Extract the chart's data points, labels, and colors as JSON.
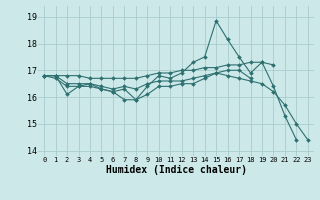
{
  "background_color": "#cce8e8",
  "grid_color": "#aacccc",
  "line_color": "#2e7070",
  "xlabel": "Humidex (Indice chaleur)",
  "ylim": [
    13.8,
    19.4
  ],
  "xlim": [
    -0.5,
    23.5
  ],
  "yticks": [
    14,
    15,
    16,
    17,
    18,
    19
  ],
  "xticks": [
    0,
    1,
    2,
    3,
    4,
    5,
    6,
    7,
    8,
    9,
    10,
    11,
    12,
    13,
    14,
    15,
    16,
    17,
    18,
    19,
    20,
    21,
    22,
    23
  ],
  "series": [
    [
      16.8,
      16.8,
      16.1,
      16.4,
      16.5,
      16.3,
      16.2,
      16.3,
      15.9,
      16.4,
      16.8,
      16.7,
      16.9,
      17.3,
      17.5,
      18.85,
      18.15,
      17.5,
      16.9,
      17.3,
      16.4,
      15.3,
      14.4,
      null
    ],
    [
      16.8,
      16.8,
      16.8,
      16.8,
      16.7,
      16.7,
      16.7,
      16.7,
      16.7,
      16.8,
      16.9,
      16.9,
      17.0,
      17.0,
      17.1,
      17.1,
      17.2,
      17.2,
      17.3,
      17.3,
      17.2,
      null,
      null,
      null
    ],
    [
      16.8,
      16.8,
      16.5,
      16.5,
      16.5,
      16.4,
      16.3,
      16.4,
      16.3,
      16.5,
      16.6,
      16.6,
      16.6,
      16.7,
      16.8,
      16.9,
      17.0,
      17.0,
      16.7,
      null,
      null,
      null,
      null,
      null
    ],
    [
      16.8,
      16.7,
      16.4,
      16.4,
      16.4,
      16.3,
      16.2,
      15.9,
      15.9,
      16.1,
      16.4,
      16.4,
      16.5,
      16.5,
      16.7,
      16.9,
      16.8,
      16.7,
      16.6,
      16.5,
      16.2,
      15.7,
      15.0,
      14.4
    ]
  ],
  "title_fontsize": 7,
  "xlabel_fontsize": 7,
  "ytick_fontsize": 6,
  "xtick_fontsize": 5
}
